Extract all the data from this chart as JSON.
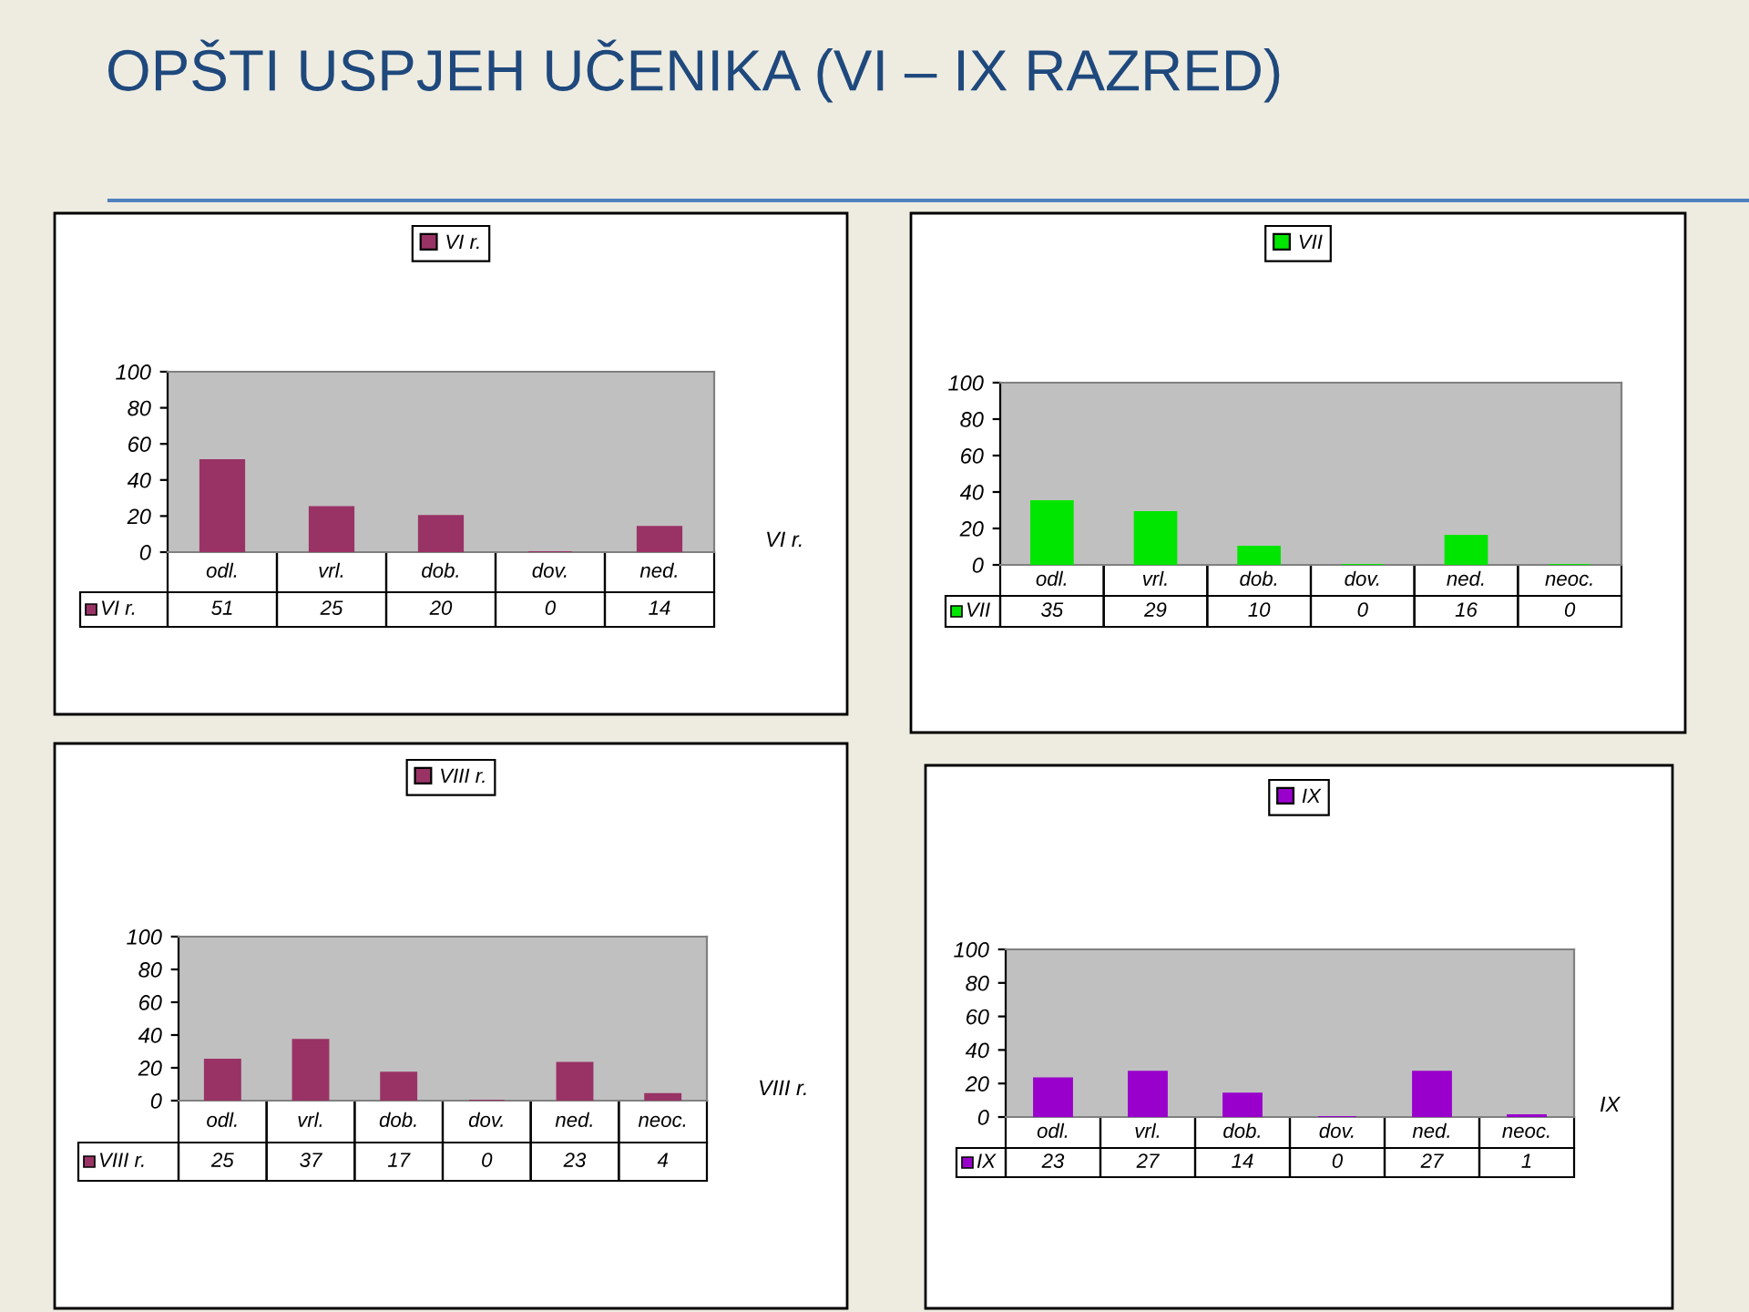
{
  "chart_data": [
    {
      "type": "bar",
      "title": "OPŠTI USPJEH UČENIKA (VI – IX RAZRED)",
      "categories": [
        "odl.",
        "vrl.",
        "dob.",
        "dov.",
        "ned."
      ],
      "series": [
        {
          "name": "VI r.",
          "color": "#993366",
          "values": [
            51,
            25,
            20,
            0,
            14
          ]
        }
      ],
      "ylim": [
        0,
        100
      ],
      "yticks": [
        0,
        20,
        40,
        60,
        80,
        100
      ],
      "data_labels": true,
      "legend": "bottom left",
      "annotations": [
        "VI r."
      ]
    },
    {
      "type": "bar",
      "categories": [
        "odl.",
        "vrl.",
        "dob.",
        "dov.",
        "ned.",
        "neoc."
      ],
      "series": [
        {
          "name": "VII",
          "color": "#00e600",
          "values": [
            35,
            29,
            10,
            0,
            16,
            0
          ]
        }
      ],
      "ylim": [
        0,
        100
      ],
      "yticks": [
        0,
        20,
        40,
        60,
        80,
        100
      ],
      "data_labels": true,
      "legend": "bottom left"
    },
    {
      "type": "bar",
      "categories": [
        "odl.",
        "vrl.",
        "dob.",
        "dov.",
        "ned.",
        "neoc."
      ],
      "series": [
        {
          "name": "VIII r.",
          "color": "#993366",
          "values": [
            25,
            37,
            17,
            0,
            23,
            4
          ]
        }
      ],
      "ylim": [
        0,
        100
      ],
      "yticks": [
        0,
        20,
        40,
        60,
        80,
        100
      ],
      "data_labels": true,
      "legend": "bottom left",
      "annotations": [
        "VIII r."
      ]
    },
    {
      "type": "bar",
      "categories": [
        "odl.",
        "vrl.",
        "dob.",
        "dov.",
        "ned.",
        "neoc."
      ],
      "series": [
        {
          "name": "IX",
          "color": "#9900cc",
          "values": [
            23,
            27,
            14,
            0,
            27,
            1
          ]
        }
      ],
      "ylim": [
        0,
        100
      ],
      "yticks": [
        0,
        20,
        40,
        60,
        80,
        100
      ],
      "data_labels": true,
      "legend": "bottom left",
      "annotations": [
        "IX"
      ]
    }
  ]
}
